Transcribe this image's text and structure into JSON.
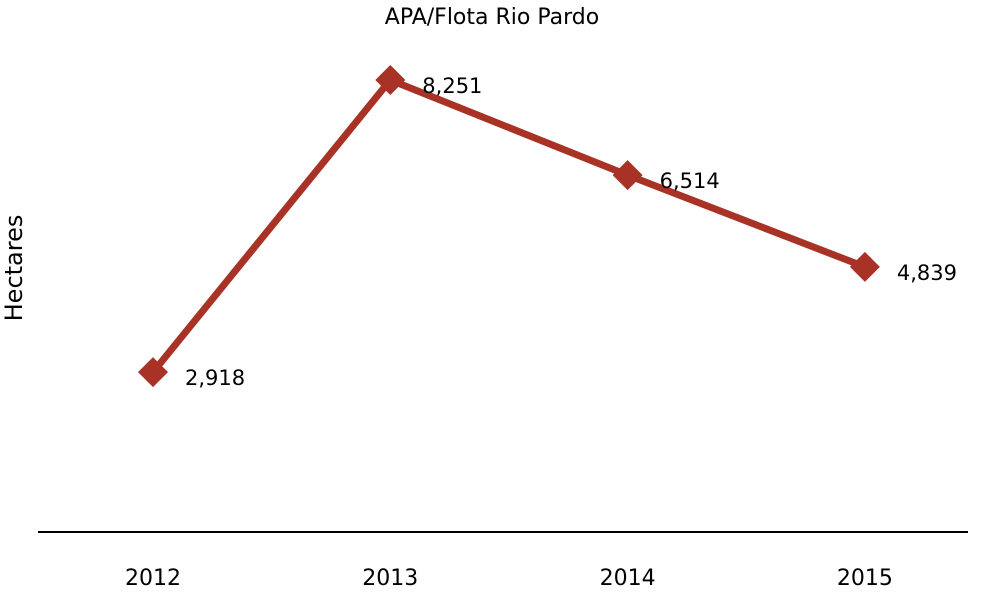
{
  "colors": {
    "series": "#A93226",
    "axis": "#000000",
    "background": "#ffffff"
  },
  "chart_data": {
    "type": "line",
    "title": "APA/Flota Rio Pardo",
    "xlabel": "",
    "ylabel": "Hectares",
    "categories": [
      "2012",
      "2013",
      "2014",
      "2015"
    ],
    "series": [
      {
        "values": [
          2918,
          8251,
          6514,
          4839
        ],
        "data_labels": [
          "2,918",
          "8,251",
          "6,514",
          "4,839"
        ],
        "marker": "diamond"
      }
    ],
    "ylim": [
      0,
      10000
    ],
    "grid": false,
    "legend": "none"
  }
}
